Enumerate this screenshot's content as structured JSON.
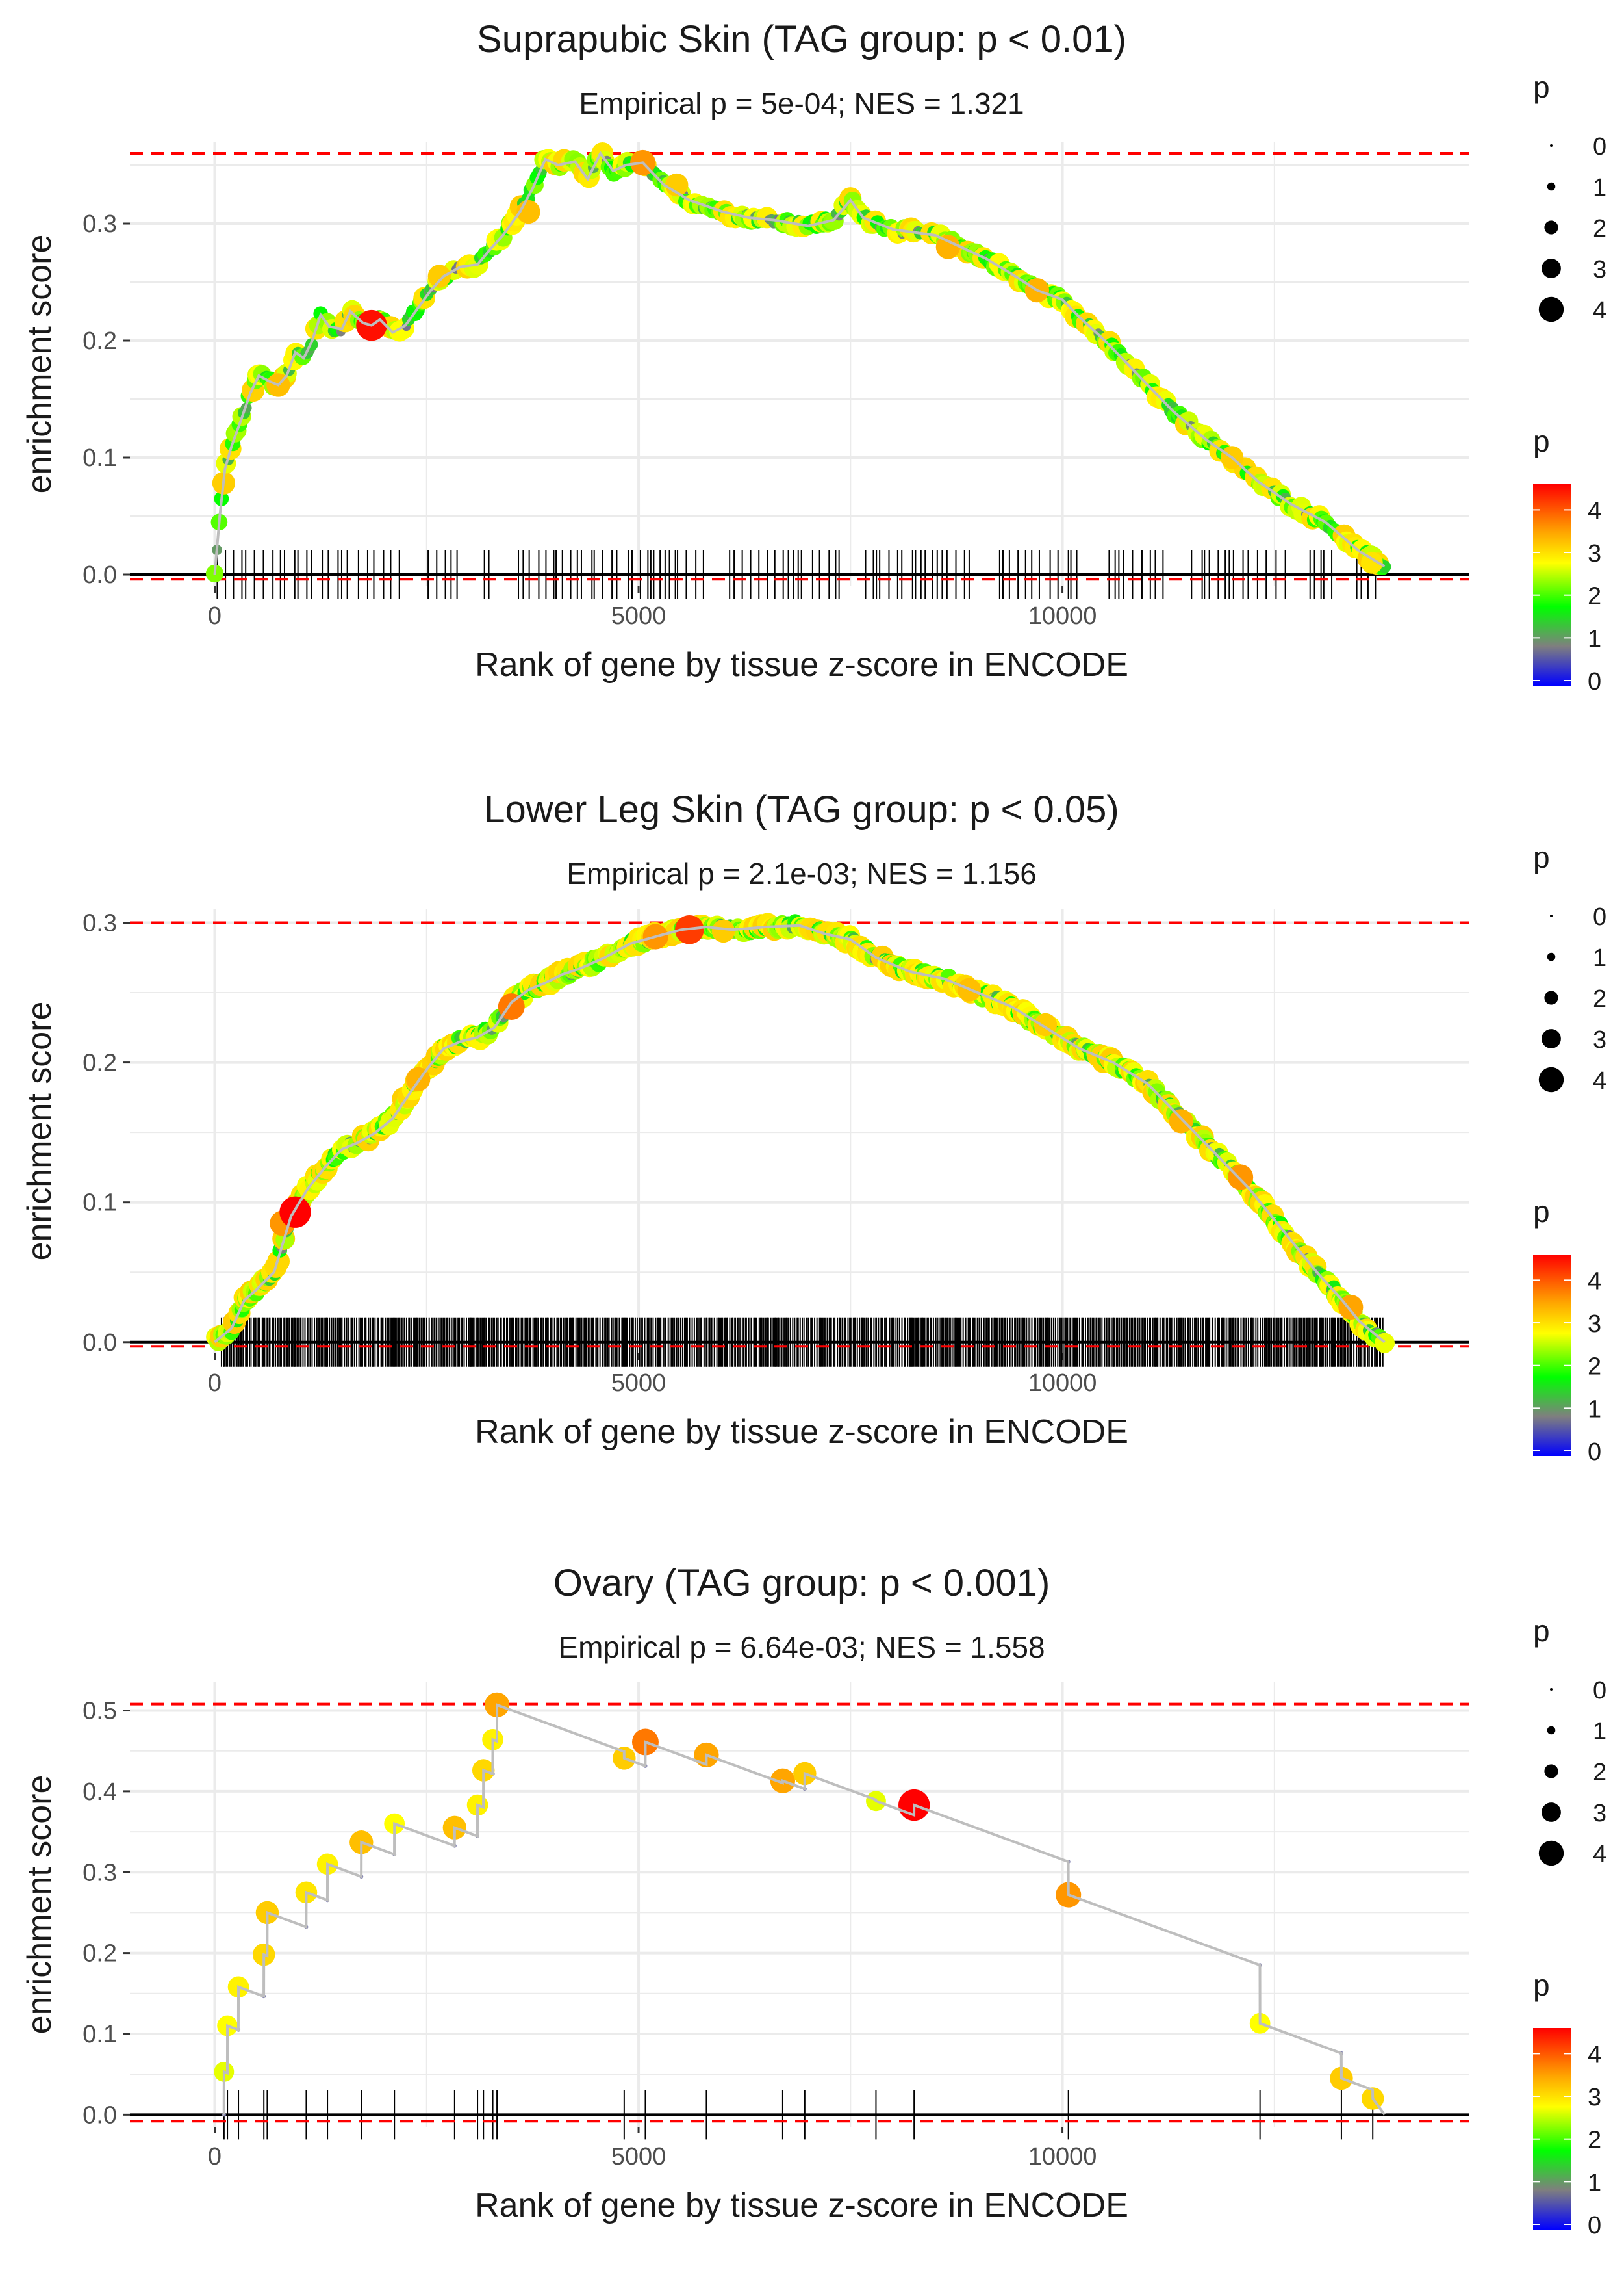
{
  "figure": {
    "facet_count": 3
  },
  "colors": {
    "grid": "#ebebeb",
    "zero_line": "#000000",
    "threshold_line": "#ff0000",
    "curve_line": "#bebebe",
    "rug": "#000000",
    "scale_low": "#0000ff",
    "scale_mid1": "#7f7f7f",
    "scale_mid2": "#00ff00",
    "scale_mid3": "#ffff00",
    "scale_mid4": "#ffa500",
    "scale_high": "#ff0000"
  },
  "chart_data": [
    {
      "type": "scatter",
      "title": "Suprapubic Skin (TAG group: p < 0.01)",
      "subtitle": "Empirical p = 5e-04; NES = 1.321",
      "xlabel": "Rank of gene by tissue z-score in ENCODE",
      "ylabel": "enrichment score",
      "xlim": [
        -1000,
        14800
      ],
      "ylim": [
        -0.01,
        0.37
      ],
      "x_ticks": [
        0,
        5000,
        10000
      ],
      "y_ticks": [
        0.0,
        0.1,
        0.2,
        0.3
      ],
      "y_tick_labels": [
        "0.0",
        "0.1",
        "0.2",
        "0.3"
      ],
      "hlines": [
        0.36,
        -0.004
      ],
      "x_max": 13800,
      "rug_density": "medium",
      "curve": [
        [
          0,
          0
        ],
        [
          60,
          0.05
        ],
        [
          120,
          0.09
        ],
        [
          200,
          0.11
        ],
        [
          300,
          0.13
        ],
        [
          420,
          0.155
        ],
        [
          520,
          0.17
        ],
        [
          650,
          0.165
        ],
        [
          750,
          0.162
        ],
        [
          850,
          0.17
        ],
        [
          950,
          0.19
        ],
        [
          1050,
          0.185
        ],
        [
          1150,
          0.2
        ],
        [
          1250,
          0.222
        ],
        [
          1350,
          0.212
        ],
        [
          1500,
          0.21
        ],
        [
          1600,
          0.225
        ],
        [
          1750,
          0.215
        ],
        [
          1850,
          0.213
        ],
        [
          1950,
          0.218
        ],
        [
          2100,
          0.207
        ],
        [
          2250,
          0.213
        ],
        [
          2400,
          0.228
        ],
        [
          2550,
          0.243
        ],
        [
          2700,
          0.255
        ],
        [
          2900,
          0.263
        ],
        [
          3100,
          0.265
        ],
        [
          3250,
          0.278
        ],
        [
          3400,
          0.29
        ],
        [
          3600,
          0.31
        ],
        [
          3750,
          0.33
        ],
        [
          3900,
          0.355
        ],
        [
          4050,
          0.35
        ],
        [
          4250,
          0.353
        ],
        [
          4400,
          0.338
        ],
        [
          4550,
          0.36
        ],
        [
          4700,
          0.345
        ],
        [
          4850,
          0.35
        ],
        [
          5050,
          0.352
        ],
        [
          5300,
          0.333
        ],
        [
          5600,
          0.32
        ],
        [
          6000,
          0.31
        ],
        [
          6300,
          0.305
        ],
        [
          6600,
          0.303
        ],
        [
          7000,
          0.298
        ],
        [
          7300,
          0.303
        ],
        [
          7500,
          0.32
        ],
        [
          7650,
          0.305
        ],
        [
          8000,
          0.295
        ],
        [
          8500,
          0.29
        ],
        [
          8800,
          0.28
        ],
        [
          9100,
          0.27
        ],
        [
          9400,
          0.257
        ],
        [
          9700,
          0.243
        ],
        [
          10000,
          0.235
        ],
        [
          10200,
          0.22
        ],
        [
          10500,
          0.2
        ],
        [
          10900,
          0.17
        ],
        [
          11300,
          0.14
        ],
        [
          11700,
          0.115
        ],
        [
          12000,
          0.1
        ],
        [
          12300,
          0.08
        ],
        [
          12700,
          0.06
        ],
        [
          13100,
          0.045
        ],
        [
          13500,
          0.02
        ],
        [
          13800,
          0.007
        ]
      ],
      "highlights": [
        [
          750,
          0.162,
          3.3
        ],
        [
          1850,
          0.213,
          4.5
        ],
        [
          2650,
          0.255,
          3.2
        ],
        [
          3700,
          0.31,
          3.3
        ],
        [
          5050,
          0.352,
          3.6
        ],
        [
          5450,
          0.333,
          3.2
        ],
        [
          8650,
          0.28,
          3.4
        ],
        [
          9700,
          0.243,
          3.4
        ],
        [
          12000,
          0.1,
          3.2
        ],
        [
          13650,
          0.01,
          3.0
        ]
      ]
    },
    {
      "type": "scatter",
      "title": "Lower Leg Skin (TAG group: p < 0.05)",
      "subtitle": "Empirical p = 2.1e-03; NES = 1.156",
      "xlabel": "Rank of gene by tissue z-score in ENCODE",
      "ylabel": "enrichment score",
      "xlim": [
        -1000,
        14800
      ],
      "ylim": [
        -0.008,
        0.31
      ],
      "x_ticks": [
        0,
        5000,
        10000
      ],
      "y_ticks": [
        0.0,
        0.1,
        0.2,
        0.3
      ],
      "y_tick_labels": [
        "0.0",
        "0.1",
        "0.2",
        "0.3"
      ],
      "hlines": [
        0.3,
        -0.003
      ],
      "x_max": 13800,
      "rug_density": "dense",
      "curve": [
        [
          0,
          0
        ],
        [
          200,
          0.01
        ],
        [
          350,
          0.03
        ],
        [
          500,
          0.038
        ],
        [
          700,
          0.05
        ],
        [
          900,
          0.09
        ],
        [
          1100,
          0.11
        ],
        [
          1300,
          0.125
        ],
        [
          1500,
          0.138
        ],
        [
          1700,
          0.143
        ],
        [
          1900,
          0.15
        ],
        [
          2100,
          0.16
        ],
        [
          2300,
          0.178
        ],
        [
          2500,
          0.195
        ],
        [
          2700,
          0.21
        ],
        [
          2900,
          0.215
        ],
        [
          3100,
          0.218
        ],
        [
          3300,
          0.225
        ],
        [
          3500,
          0.243
        ],
        [
          3700,
          0.252
        ],
        [
          3900,
          0.257
        ],
        [
          4100,
          0.263
        ],
        [
          4300,
          0.267
        ],
        [
          4600,
          0.275
        ],
        [
          4900,
          0.285
        ],
        [
          5200,
          0.29
        ],
        [
          5500,
          0.295
        ],
        [
          5800,
          0.297
        ],
        [
          6100,
          0.295
        ],
        [
          6500,
          0.297
        ],
        [
          6900,
          0.298
        ],
        [
          7200,
          0.292
        ],
        [
          7500,
          0.288
        ],
        [
          7800,
          0.275
        ],
        [
          8200,
          0.265
        ],
        [
          8600,
          0.26
        ],
        [
          9000,
          0.25
        ],
        [
          9400,
          0.24
        ],
        [
          9800,
          0.225
        ],
        [
          10200,
          0.21
        ],
        [
          10600,
          0.2
        ],
        [
          11000,
          0.185
        ],
        [
          11400,
          0.16
        ],
        [
          11800,
          0.135
        ],
        [
          12200,
          0.11
        ],
        [
          12600,
          0.08
        ],
        [
          13000,
          0.05
        ],
        [
          13300,
          0.03
        ],
        [
          13500,
          0.015
        ],
        [
          13800,
          0.0
        ]
      ],
      "highlights": [
        [
          800,
          0.085,
          3.6
        ],
        [
          950,
          0.093,
          4.6
        ],
        [
          2400,
          0.188,
          3.4
        ],
        [
          3500,
          0.24,
          3.8
        ],
        [
          5200,
          0.29,
          3.6
        ],
        [
          5600,
          0.295,
          4.2
        ],
        [
          6000,
          0.294,
          3.2
        ],
        [
          8900,
          0.252,
          3.3
        ],
        [
          9800,
          0.227,
          3.2
        ],
        [
          11400,
          0.158,
          3.4
        ],
        [
          12100,
          0.118,
          3.6
        ],
        [
          13400,
          0.025,
          3.5
        ]
      ]
    },
    {
      "type": "scatter",
      "title": "Ovary (TAG group: p < 0.001)",
      "subtitle": "Empirical p = 6.64e-03; NES = 1.558",
      "xlabel": "Rank of gene by tissue z-score in ENCODE",
      "ylabel": "enrichment score",
      "xlim": [
        -1000,
        14800
      ],
      "ylim": [
        -0.015,
        0.535
      ],
      "x_ticks": [
        0,
        5000,
        10000
      ],
      "y_ticks": [
        0.0,
        0.1,
        0.2,
        0.3,
        0.4,
        0.5
      ],
      "y_tick_labels": [
        "0.0",
        "0.1",
        "0.2",
        "0.3",
        "0.4",
        "0.5"
      ],
      "hlines": [
        0.508,
        -0.008
      ],
      "x_max": 13800,
      "rug_density": "sparse",
      "gene_hits": [
        [
          110,
          0.053,
          2.7
        ],
        [
          150,
          0.11,
          2.8
        ],
        [
          280,
          0.158,
          2.9
        ],
        [
          580,
          0.198,
          3.1
        ],
        [
          620,
          0.25,
          3.2
        ],
        [
          1080,
          0.275,
          3.0
        ],
        [
          1330,
          0.31,
          2.9
        ],
        [
          1730,
          0.337,
          3.3
        ],
        [
          2120,
          0.36,
          2.8
        ],
        [
          2830,
          0.355,
          3.3
        ],
        [
          3100,
          0.383,
          2.9
        ],
        [
          3170,
          0.426,
          3.1
        ],
        [
          3280,
          0.464,
          2.9
        ],
        [
          3330,
          0.507,
          3.5
        ],
        [
          4830,
          0.441,
          3.2
        ],
        [
          5080,
          0.461,
          3.8
        ],
        [
          5800,
          0.445,
          3.5
        ],
        [
          6700,
          0.413,
          3.5
        ],
        [
          6960,
          0.422,
          3.2
        ],
        [
          7800,
          0.388,
          2.7
        ],
        [
          8250,
          0.383,
          4.6
        ],
        [
          10070,
          0.272,
          3.6
        ],
        [
          12330,
          0.113,
          2.8
        ],
        [
          13290,
          0.045,
          3.2
        ],
        [
          13660,
          0.02,
          3.1
        ]
      ],
      "end_point": [
        13800,
        0.0
      ]
    }
  ],
  "legends": {
    "size_title": "p",
    "size_labels": [
      "0",
      "1",
      "2",
      "3",
      "4"
    ],
    "color_title": "p",
    "color_labels": [
      "0",
      "1",
      "2",
      "3",
      "4"
    ]
  }
}
